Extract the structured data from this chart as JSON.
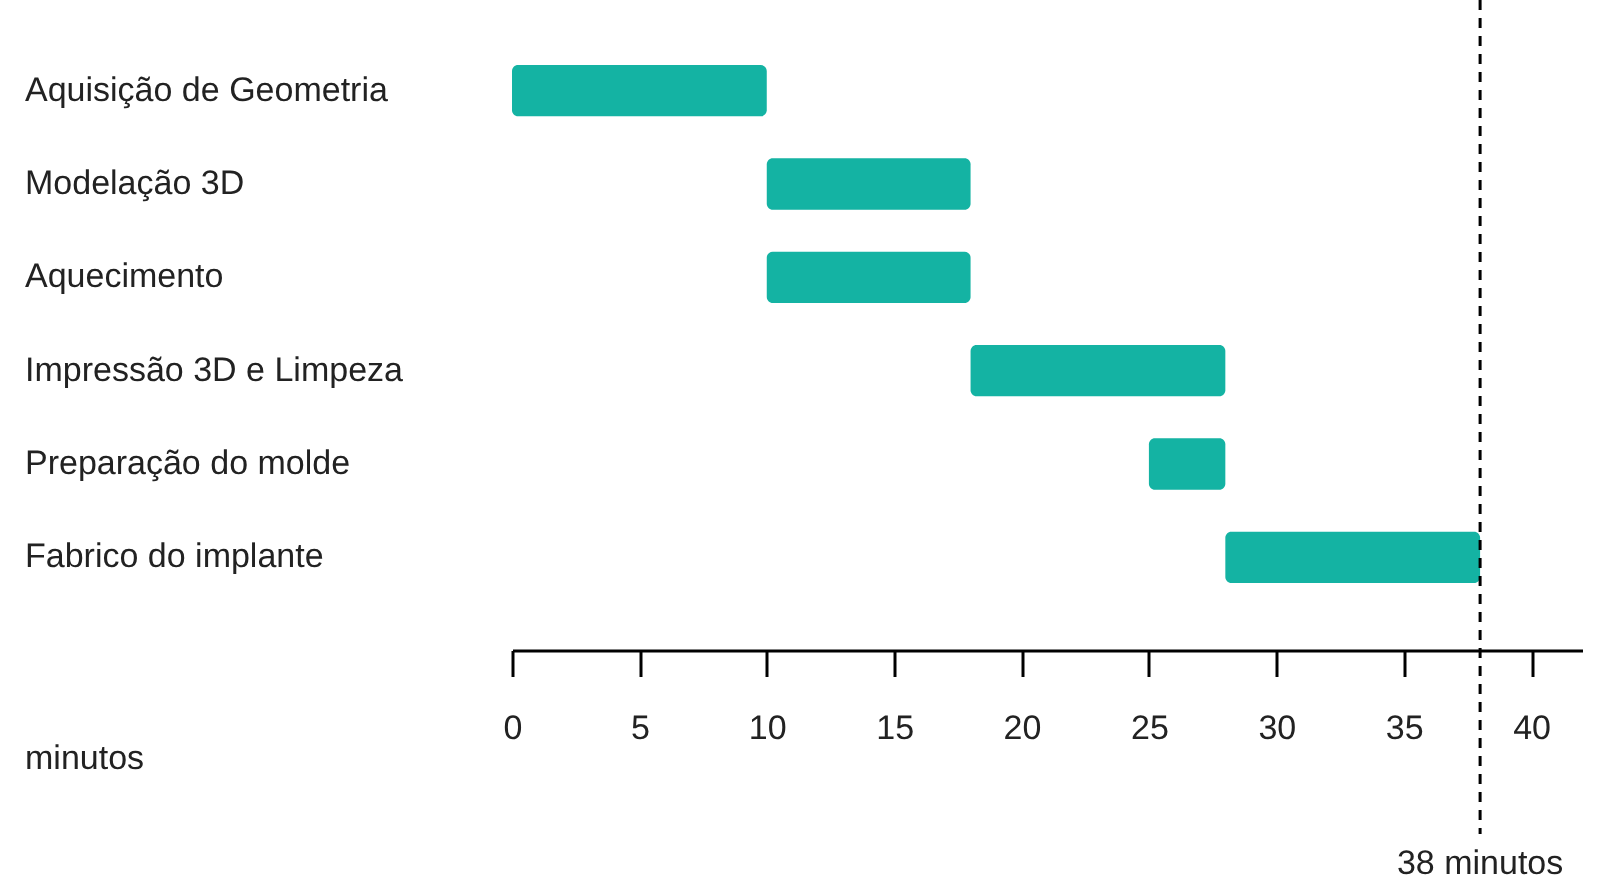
{
  "chart_data": {
    "type": "bar",
    "orientation": "horizontal",
    "categories": [
      "Aquisição de Geometria",
      "Modelação 3D",
      "Aquecimento",
      "Impressão 3D e Limpeza",
      "Preparação do molde",
      "Fabrico do implante"
    ],
    "base": [
      0,
      10,
      10,
      18,
      25,
      28
    ],
    "values": [
      10,
      8,
      8,
      10,
      3,
      10
    ],
    "color": "#14b3a3",
    "xlabel": "minutos",
    "xlim": [
      0,
      42
    ],
    "xticks": [
      0,
      5,
      10,
      15,
      20,
      25,
      30,
      35,
      40
    ],
    "ref_lines": [
      {
        "axis": "x",
        "value": 38,
        "label": "38 minutos",
        "line_style": "dashed"
      }
    ],
    "grid": false
  }
}
